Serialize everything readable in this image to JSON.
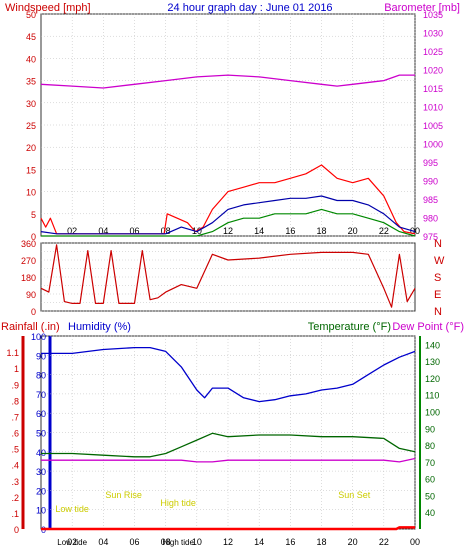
{
  "chart_data": [
    {
      "type": "line",
      "title": "24 hour graph day : June 01 2016",
      "left_axis": {
        "label": "Windspeed [mph]",
        "ylim": [
          0,
          50
        ],
        "ticks": [
          0,
          5,
          10,
          15,
          20,
          25,
          30,
          35,
          40,
          45,
          50
        ]
      },
      "right_axis": {
        "label": "Barometer [mb]",
        "ylim": [
          975,
          1035
        ],
        "ticks": [
          975,
          980,
          985,
          990,
          995,
          1000,
          1005,
          1010,
          1015,
          1020,
          1025,
          1030,
          1035
        ]
      },
      "x_ticks": [
        "02",
        "04",
        "06",
        "08",
        "10",
        "12",
        "14",
        "16",
        "18",
        "20",
        "22",
        "00"
      ],
      "xlim": [
        0,
        24
      ],
      "grid": true,
      "series": [
        {
          "name": "Barometer [mb]",
          "axis": "right",
          "color": "#cc00cc",
          "x": [
            0,
            2,
            4,
            6,
            8,
            10,
            12,
            14,
            16,
            18,
            19,
            20,
            22,
            23,
            24
          ],
          "values": [
            1016,
            1015.5,
            1015,
            1016,
            1017,
            1018,
            1018.5,
            1018,
            1017,
            1016,
            1015.5,
            1016,
            1017,
            1018.5,
            1018.5
          ]
        },
        {
          "color": "#ff0000",
          "axis": "left",
          "x": [
            0,
            0.3,
            0.6,
            1,
            7.9,
            8.1,
            9.4,
            9.9,
            10.4,
            11,
            12,
            13,
            14,
            15,
            16,
            17,
            18,
            19,
            20,
            21,
            22,
            22.8,
            23.3,
            24
          ],
          "values": [
            4,
            2,
            4,
            0.5,
            0.5,
            5,
            3,
            1,
            2,
            6,
            10,
            11,
            12,
            12,
            13,
            14,
            16,
            13,
            12,
            13,
            9,
            3,
            1,
            0.5
          ]
        },
        {
          "color": "#0000aa",
          "axis": "left",
          "x": [
            0,
            1,
            8,
            9,
            10,
            11,
            12,
            13,
            14,
            15,
            16,
            17,
            18,
            19,
            20,
            21,
            22,
            23,
            24
          ],
          "values": [
            1,
            0.5,
            0.5,
            2,
            1,
            3,
            6,
            7,
            7.5,
            8,
            8.5,
            8.5,
            9,
            8,
            8,
            7,
            5,
            2,
            1
          ]
        },
        {
          "color": "#008800",
          "axis": "left",
          "x": [
            0,
            1,
            8,
            10,
            11,
            12,
            13,
            14,
            15,
            16,
            17,
            18,
            19,
            20,
            21,
            22,
            23,
            24
          ],
          "values": [
            0,
            0,
            0,
            0,
            1,
            3,
            4,
            4,
            5,
            5,
            5,
            6,
            5,
            5,
            4,
            3,
            1,
            0
          ]
        }
      ]
    },
    {
      "type": "line",
      "left_axis": {
        "ylim": [
          0,
          360
        ],
        "ticks": [
          0,
          45,
          90,
          135,
          180,
          225,
          270,
          315,
          360
        ]
      },
      "right_labels": [
        "N",
        "W",
        "S",
        "E",
        "N"
      ],
      "series": [
        {
          "name": "Wind direction",
          "color": "#cc0000",
          "x": [
            0,
            0.5,
            1,
            1.5,
            2,
            2.5,
            3,
            3.5,
            4,
            4.5,
            5,
            6,
            6.5,
            7,
            7.5,
            8,
            9,
            10,
            11,
            12,
            14,
            16,
            18,
            20,
            21,
            22,
            22.5,
            23,
            23.5,
            24
          ],
          "values": [
            120,
            100,
            350,
            50,
            40,
            40,
            320,
            40,
            40,
            320,
            40,
            40,
            320,
            60,
            70,
            100,
            140,
            120,
            300,
            270,
            280,
            300,
            310,
            310,
            300,
            120,
            20,
            300,
            50,
            120
          ]
        }
      ]
    },
    {
      "type": "line",
      "labels": {
        "rainfall": "Rainfall (.in)",
        "humidity": "Humidity (%)",
        "temperature": "Temperature (°F)",
        "dewpoint": "Dew Point (°F)"
      },
      "left_outer_axis": {
        "label": "Rainfall (.in)",
        "ylim": [
          0,
          1.2
        ],
        "ticks": [
          0,
          0.1,
          0.2,
          0.3,
          0.4,
          0.5,
          0.6,
          0.7,
          0.8,
          0.9,
          1,
          1.1
        ]
      },
      "left_inner_axis": {
        "label": "Humidity (%)",
        "ylim": [
          0,
          100
        ],
        "ticks": [
          0,
          10,
          20,
          30,
          40,
          50,
          60,
          70,
          80,
          90,
          100
        ]
      },
      "right_axis": {
        "label": "Temperature (°F)",
        "ylim": [
          30,
          145
        ],
        "ticks": [
          40,
          50,
          60,
          70,
          80,
          90,
          100,
          110,
          120,
          130,
          140
        ]
      },
      "x_ticks": [
        "02",
        "04",
        "06",
        "08",
        "10",
        "12",
        "14",
        "16",
        "18",
        "20",
        "22",
        "00"
      ],
      "annotations": [
        {
          "text": "Low tide",
          "color": "#cccc00",
          "x": 2
        },
        {
          "text": "Sun Rise",
          "color": "#cccc00",
          "x": 5.3
        },
        {
          "text": "High tide",
          "color": "#cccc00",
          "x": 8.8
        },
        {
          "text": "Sun Set",
          "color": "#cccc00",
          "x": 20.1
        }
      ],
      "bottom_labels": [
        "Low tide",
        "High tide"
      ],
      "series": [
        {
          "name": "Humidity (%)",
          "axis": "humidity",
          "color": "#0000cc",
          "x": [
            0,
            2,
            4,
            6,
            7,
            8,
            9,
            10,
            10.5,
            11,
            12,
            13,
            14,
            15,
            16,
            17,
            18,
            19,
            20,
            21,
            22,
            23,
            24
          ],
          "values": [
            91,
            91,
            93,
            94,
            94,
            92,
            84,
            72,
            68,
            73,
            73,
            68,
            66,
            67,
            69,
            70,
            72,
            73,
            75,
            80,
            85,
            89,
            92
          ]
        },
        {
          "name": "Temperature (°F)",
          "axis": "temp",
          "color": "#006600",
          "x": [
            0,
            2,
            4,
            6,
            7,
            8,
            9,
            10,
            11,
            12,
            14,
            16,
            18,
            20,
            22,
            23,
            24
          ],
          "values": [
            75,
            75,
            74,
            73,
            73,
            75,
            79,
            83,
            87,
            85,
            86,
            86,
            85,
            85,
            84,
            78,
            76
          ]
        },
        {
          "name": "Dew Point (°F)",
          "axis": "temp",
          "color": "#cc00cc",
          "x": [
            0,
            2,
            4,
            6,
            7,
            8,
            9,
            10,
            11,
            12,
            14,
            16,
            18,
            20,
            22,
            23,
            24
          ],
          "values": [
            71,
            71,
            71,
            71,
            71,
            71,
            71,
            70,
            70,
            71,
            71,
            71,
            71,
            71,
            71,
            70,
            72
          ]
        },
        {
          "name": "Rainfall (.in)",
          "axis": "rain",
          "color": "#ff0000",
          "x": [
            0,
            22.8,
            23,
            24
          ],
          "values": [
            0,
            0,
            0.01,
            0.01
          ]
        }
      ]
    }
  ]
}
